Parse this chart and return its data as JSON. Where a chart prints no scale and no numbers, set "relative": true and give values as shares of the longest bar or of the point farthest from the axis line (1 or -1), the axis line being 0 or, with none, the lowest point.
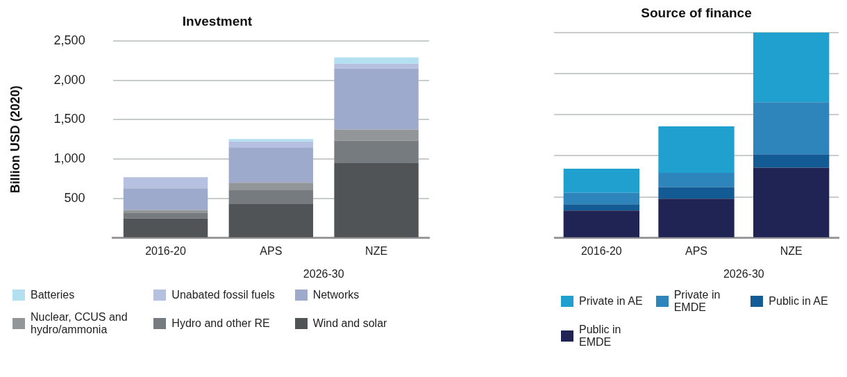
{
  "chart_data": [
    {
      "type": "bar",
      "title": "Investment",
      "ylabel": "Billion USD (2020)",
      "categories": [
        "2016-20",
        "APS",
        "NZE"
      ],
      "stacked": true,
      "ylim": [
        0,
        2500
      ],
      "yticks": [
        {
          "value": 0,
          "label": null
        },
        500,
        {
          "value": 1000,
          "label": "1,000"
        },
        {
          "value": 1500,
          "label": "1,500"
        },
        {
          "value": 2000,
          "label": "2,000"
        },
        {
          "value": 2500,
          "label": "2,500"
        }
      ],
      "grid": "y",
      "legend": "bottom",
      "annotations": [
        "2026-30"
      ],
      "series": [
        {
          "name": "Wind and solar",
          "color": "#505457",
          "values": [
            250,
            430,
            950
          ]
        },
        {
          "name": "Hydro and other RE",
          "color": "#767b7f",
          "values": [
            65,
            175,
            285
          ]
        },
        {
          "name": "Nuclear, CCUS and hydro/ammonia",
          "color": "#939698",
          "values": [
            40,
            95,
            140
          ]
        },
        {
          "name": "Networks",
          "color": "#9eaacb",
          "values": [
            275,
            450,
            775
          ]
        },
        {
          "name": "Unabated fossil fuels",
          "color": "#b6c0e0",
          "values": [
            140,
            75,
            60
          ]
        },
        {
          "name": "Batteries",
          "color": "#b3e0f0",
          "values": [
            0,
            30,
            80
          ]
        }
      ]
    },
    {
      "type": "bar",
      "title": "Source of finance",
      "categories": [
        "2016-20",
        "APS",
        "NZE"
      ],
      "stacked": true,
      "relative": true,
      "grid": "y",
      "legend": "bottom",
      "annotations": [
        "2026-30"
      ],
      "series": [
        {
          "name": "Public in EMDE",
          "color": "#1f2454",
          "values": [
            0.134,
            0.191,
            0.342
          ]
        },
        {
          "name": "Public in AE",
          "color": "#135b94",
          "values": [
            0.03,
            0.057,
            0.065
          ]
        },
        {
          "name": "Private in EMDE",
          "color": "#2d85bc",
          "values": [
            0.056,
            0.069,
            0.254
          ]
        },
        {
          "name": "Private in AE",
          "color": "#20a0cf",
          "values": [
            0.117,
            0.226,
            0.339
          ]
        }
      ]
    }
  ]
}
